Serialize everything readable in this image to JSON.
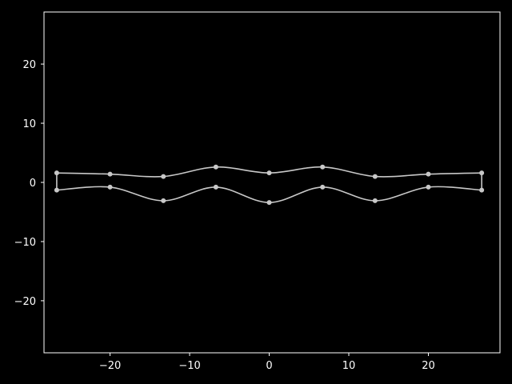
{
  "chart_data": {
    "type": "line",
    "title": "",
    "xlabel": "",
    "ylabel": "",
    "xlim": [
      -28.3,
      29.0
    ],
    "ylim": [
      -28.8,
      28.8
    ],
    "xticks": [
      -20,
      -10,
      0,
      10,
      20
    ],
    "yticks": [
      -20,
      -10,
      0,
      10,
      20
    ],
    "xtick_labels": [
      "−20",
      "−10",
      "0",
      "10",
      "20"
    ],
    "ytick_labels": [
      "−20",
      "−10",
      "0",
      "10",
      "20"
    ],
    "grid": false,
    "legend": "none",
    "series": [
      {
        "values_x": [
          -26.7,
          -20.0,
          -13.3,
          -6.7,
          0.0,
          6.7,
          13.3,
          20.0,
          26.7
        ],
        "values_y": [
          1.6,
          1.4,
          1.0,
          2.6,
          1.6,
          2.6,
          1.0,
          1.4,
          1.6
        ]
      },
      {
        "values_x": [
          -26.7,
          -20.0,
          -13.3,
          -6.7,
          0.0,
          6.7,
          13.3,
          20.0,
          26.7
        ],
        "values_y": [
          -1.3,
          -0.8,
          -3.1,
          -0.8,
          -3.4,
          -0.8,
          -3.1,
          -0.8,
          -1.3
        ]
      },
      {
        "values_x": [
          -26.7,
          -26.7
        ],
        "values_y": [
          1.6,
          -1.3
        ]
      },
      {
        "values_x": [
          26.7,
          26.7
        ],
        "values_y": [
          1.6,
          -1.3
        ]
      }
    ],
    "colors": {
      "background": "#000000",
      "axes": "#ffffff",
      "line": "#c8c8c8",
      "marker": "#c8c8c8"
    }
  }
}
